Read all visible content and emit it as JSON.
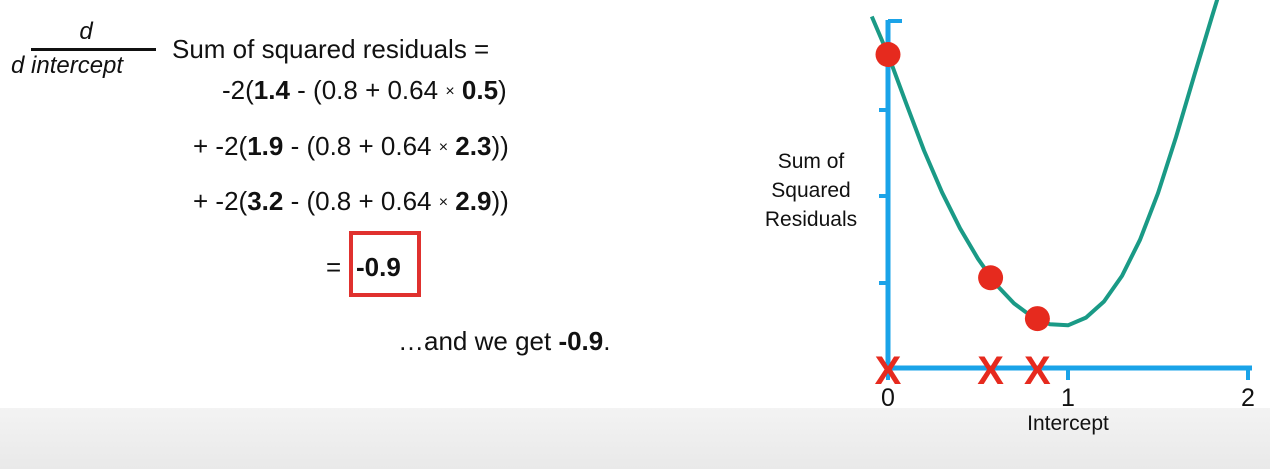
{
  "formula": {
    "derivative_numerator": "d",
    "derivative_denominator": "d intercept",
    "header": "Sum of squared residuals =",
    "terms": [
      {
        "prefix": "-2(",
        "observed": "1.4",
        "mid": " - (0.8 + 0.64 ",
        "times": "×",
        "x": "0.5",
        "suffix": ")"
      },
      {
        "prefix": "+ -2(",
        "observed": "1.9",
        "mid": " - (0.8 + 0.64 ",
        "times": "×",
        "x": "2.3",
        "suffix": "))"
      },
      {
        "prefix": "+ -2(",
        "observed": "3.2",
        "mid": " - (0.8 + 0.64 ",
        "times": "×",
        "x": "2.9",
        "suffix": "))"
      }
    ],
    "result_equals": "=",
    "result_value": "-0.9"
  },
  "caption": {
    "text": "…and we get ",
    "value": "-0.9",
    "end": "."
  },
  "chart_data": {
    "type": "line",
    "xlabel": "Intercept",
    "ylabel_lines": [
      "Sum of",
      "Squared",
      "Residuals"
    ],
    "xlim": [
      0,
      2
    ],
    "x_ticks": [
      "0",
      "1",
      "2"
    ],
    "curve_points": [
      [
        -0.09,
        3.3
      ],
      [
        0.0,
        2.9
      ],
      [
        0.1,
        2.39
      ],
      [
        0.2,
        1.89
      ],
      [
        0.3,
        1.45
      ],
      [
        0.4,
        1.07
      ],
      [
        0.5,
        0.75
      ],
      [
        0.6,
        0.48
      ],
      [
        0.7,
        0.28
      ],
      [
        0.8,
        0.14
      ],
      [
        0.9,
        0.06
      ],
      [
        1.0,
        0.05
      ],
      [
        1.1,
        0.13
      ],
      [
        1.2,
        0.3
      ],
      [
        1.3,
        0.57
      ],
      [
        1.4,
        0.95
      ],
      [
        1.5,
        1.44
      ],
      [
        1.6,
        2.03
      ],
      [
        1.7,
        2.67
      ],
      [
        1.8,
        3.3
      ],
      [
        1.87,
        3.73
      ]
    ],
    "highlighted_points": [
      [
        0.0,
        2.9
      ],
      [
        0.57,
        0.55
      ],
      [
        0.83,
        0.12
      ]
    ],
    "x_markers": [
      0.0,
      0.57,
      0.83
    ],
    "colors": {
      "axis": "#1aa3e8",
      "curve": "#1a9a86",
      "points": "#e62a1e",
      "markers": "#e62a1e"
    }
  }
}
